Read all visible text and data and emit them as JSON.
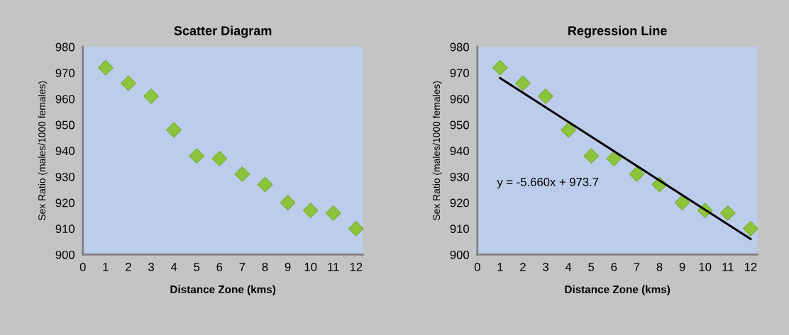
{
  "chart_data": [
    {
      "type": "scatter",
      "title": "Scatter Diagram",
      "xlabel": "Distance Zone (kms)",
      "ylabel": "Sex Ratio (males/1000 females)",
      "xlim": [
        0,
        12.3
      ],
      "xticks": [
        0,
        1,
        2,
        3,
        4,
        5,
        6,
        7,
        8,
        9,
        10,
        11,
        12
      ],
      "ylim": [
        900,
        980
      ],
      "yticks": [
        900,
        910,
        920,
        930,
        940,
        950,
        960,
        970,
        980
      ],
      "grid": false,
      "legend": false,
      "marker": "diamond",
      "series": [
        {
          "color": "#8cc43c",
          "x": [
            1,
            2,
            3,
            4,
            5,
            6,
            7,
            8,
            9,
            10,
            11,
            12
          ],
          "values": [
            972,
            966,
            961,
            948,
            938,
            937,
            931,
            927,
            920,
            917,
            916,
            910
          ]
        }
      ]
    },
    {
      "type": "scatter",
      "title": "Regression Line",
      "xlabel": "Distance Zone (kms)",
      "ylabel": "Sex Ratio (males/1000 females)",
      "xlim": [
        0,
        12.3
      ],
      "xticks": [
        0,
        1,
        2,
        3,
        4,
        5,
        6,
        7,
        8,
        9,
        10,
        11,
        12
      ],
      "ylim": [
        900,
        980
      ],
      "yticks": [
        900,
        910,
        920,
        930,
        940,
        950,
        960,
        970,
        980
      ],
      "grid": false,
      "legend": false,
      "marker": "diamond",
      "annotations": [
        "y = -5.660x + 973.7"
      ],
      "series": [
        {
          "color": "#8cc43c",
          "x": [
            1,
            2,
            3,
            4,
            5,
            6,
            7,
            8,
            9,
            10,
            11,
            12
          ],
          "values": [
            972,
            966,
            961,
            948,
            938,
            937,
            931,
            927,
            920,
            917,
            916,
            910
          ]
        },
        {
          "type": "line",
          "color": "#000000",
          "line_style": "solid",
          "marker": "none",
          "x": [
            1,
            12
          ],
          "values": [
            968,
            906
          ]
        }
      ]
    }
  ]
}
